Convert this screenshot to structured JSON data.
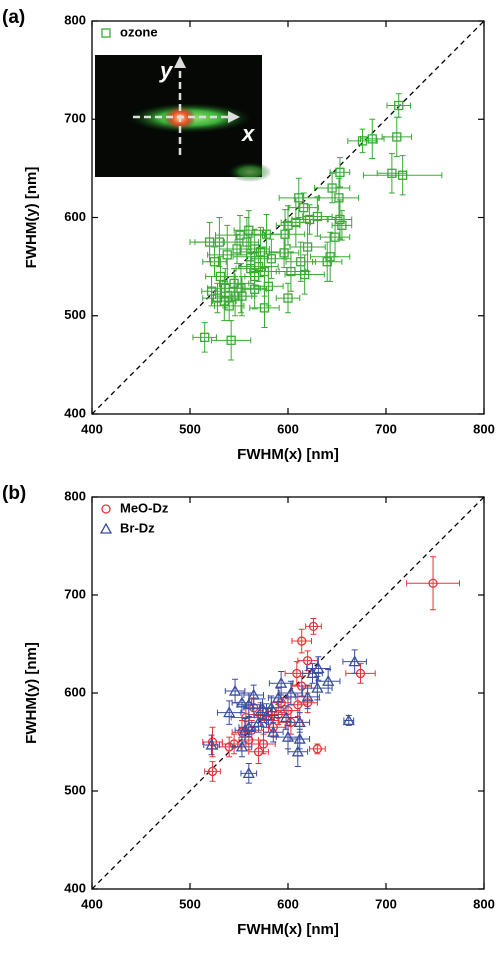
{
  "chart_data": [
    {
      "type": "scatter",
      "panel_label": "(a)",
      "xlabel": "FWHM(x) [nm]",
      "ylabel": "FWHM(y) [nm]",
      "xlim": [
        400,
        800
      ],
      "ylim": [
        400,
        800
      ],
      "xticks": [
        400,
        500,
        600,
        700,
        800
      ],
      "yticks": [
        400,
        500,
        600,
        700,
        800
      ],
      "diagonal": true,
      "legend": "upper left",
      "inset": {
        "x_label": "x",
        "y_label": "y"
      },
      "series": [
        {
          "name": "ozone",
          "color": "#3aaa35",
          "marker": "square",
          "x": [
            713,
            711,
            717,
            706,
            686,
            676,
            653,
            652,
            645,
            653,
            655,
            648,
            643,
            630,
            622,
            611,
            616,
            608,
            600,
            597,
            613,
            600,
            640,
            617,
            578,
            572,
            566,
            562,
            558,
            551,
            548,
            560,
            562,
            570,
            576,
            580,
            566,
            552,
            545,
            538,
            530,
            520,
            525,
            531,
            536,
            522,
            528,
            535,
            540,
            546,
            542,
            515,
            553,
            576,
            566,
            596,
            583,
            620,
            603
          ],
          "values": [
            714,
            682,
            643,
            645,
            680,
            678,
            646,
            620,
            630,
            598,
            592,
            580,
            560,
            601,
            598,
            620,
            610,
            595,
            592,
            583,
            555,
            518,
            555,
            542,
            583,
            565,
            568,
            560,
            575,
            582,
            568,
            587,
            548,
            550,
            545,
            530,
            527,
            528,
            533,
            562,
            575,
            575,
            555,
            540,
            528,
            525,
            518,
            515,
            510,
            520,
            475,
            478,
            520,
            508,
            540,
            564,
            558,
            570,
            545
          ],
          "xerr": [
            12,
            15,
            40,
            15,
            12,
            15,
            10,
            20,
            18,
            12,
            10,
            15,
            20,
            15,
            18,
            20,
            15,
            15,
            12,
            20,
            15,
            12,
            15,
            20,
            15,
            20,
            15,
            18,
            12,
            25,
            18,
            15,
            15,
            20,
            15,
            15,
            12,
            20,
            15,
            20,
            30,
            15,
            12,
            15,
            18,
            10,
            15,
            12,
            15,
            20,
            20,
            12,
            10,
            15,
            10,
            15,
            20,
            18,
            15
          ],
          "yerr": [
            12,
            20,
            20,
            20,
            20,
            12,
            15,
            20,
            15,
            20,
            15,
            20,
            25,
            20,
            15,
            20,
            15,
            25,
            20,
            25,
            20,
            15,
            20,
            20,
            20,
            25,
            20,
            20,
            25,
            20,
            15,
            20,
            15,
            15,
            25,
            20,
            20,
            25,
            15,
            30,
            25,
            20,
            15,
            20,
            20,
            15,
            15,
            20,
            15,
            20,
            20,
            15,
            20,
            20,
            20,
            15,
            20,
            25,
            20
          ]
        }
      ]
    },
    {
      "type": "scatter",
      "panel_label": "(b)",
      "xlabel": "FWHM(x) [nm]",
      "ylabel": "FWHM(y) [nm]",
      "xlim": [
        400,
        800
      ],
      "ylim": [
        400,
        800
      ],
      "xticks": [
        400,
        500,
        600,
        700,
        800
      ],
      "yticks": [
        400,
        500,
        600,
        700,
        800
      ],
      "diagonal": true,
      "legend": "upper left",
      "series": [
        {
          "name": "MeO-Dz",
          "color": "#e8333a",
          "marker": "circle",
          "x": [
            748,
            674,
            626,
            614,
            620,
            609,
            614,
            610,
            630,
            600,
            593,
            585,
            580,
            575,
            570,
            563,
            557,
            553,
            523,
            523,
            540,
            590,
            603,
            620,
            565,
            572,
            560,
            545
          ],
          "values": [
            712,
            620,
            668,
            653,
            633,
            620,
            607,
            588,
            543,
            582,
            590,
            565,
            572,
            548,
            540,
            562,
            575,
            560,
            550,
            520,
            545,
            578,
            570,
            590,
            585,
            578,
            552,
            548
          ],
          "xerr": [
            27,
            15,
            8,
            10,
            10,
            12,
            10,
            10,
            8,
            12,
            10,
            12,
            10,
            12,
            10,
            12,
            15,
            10,
            10,
            8,
            12,
            10,
            12,
            10,
            10,
            12,
            10,
            12
          ],
          "yerr": [
            27,
            10,
            8,
            12,
            10,
            12,
            10,
            12,
            5,
            12,
            10,
            10,
            12,
            10,
            12,
            10,
            12,
            12,
            15,
            10,
            10,
            10,
            12,
            10,
            10,
            12,
            10,
            10
          ]
        },
        {
          "name": "Br-Dz",
          "color": "#3b4ea0",
          "marker": "triangle",
          "x": [
            662,
            668,
            641,
            631,
            625,
            620,
            612,
            612,
            610,
            593,
            590,
            583,
            578,
            574,
            560,
            560,
            556,
            553,
            560,
            546,
            540,
            522,
            553,
            598,
            603,
            630,
            585,
            570,
            565,
            600
          ],
          "values": [
            572,
            632,
            612,
            625,
            620,
            596,
            570,
            553,
            540,
            610,
            595,
            585,
            577,
            584,
            588,
            565,
            562,
            545,
            518,
            602,
            580,
            547,
            590,
            575,
            600,
            605,
            560,
            570,
            598,
            555
          ],
          "xerr": [
            5,
            12,
            12,
            12,
            10,
            12,
            10,
            10,
            10,
            12,
            10,
            12,
            12,
            10,
            12,
            10,
            10,
            10,
            8,
            10,
            12,
            8,
            10,
            12,
            12,
            15,
            10,
            10,
            10,
            12
          ],
          "yerr": [
            5,
            12,
            12,
            12,
            10,
            12,
            10,
            10,
            15,
            12,
            10,
            12,
            12,
            10,
            12,
            10,
            12,
            10,
            10,
            12,
            12,
            10,
            10,
            12,
            12,
            12,
            10,
            10,
            10,
            12
          ]
        }
      ]
    }
  ]
}
